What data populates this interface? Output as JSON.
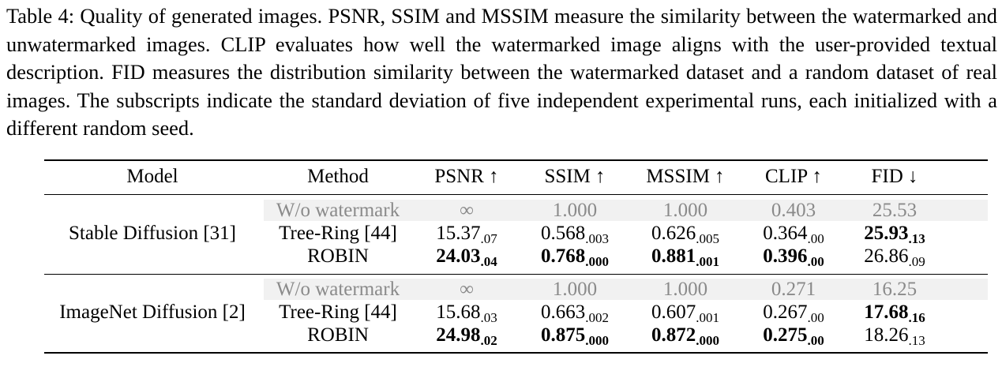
{
  "caption": "Table 4: Quality of generated images. PSNR, SSIM and MSSIM measure the similarity between the watermarked and unwatermarked images. CLIP evaluates how well the watermarked image aligns with the user-provided textual description. FID measures the distribution similarity between the watermarked dataset and a random dataset of real images. The subscripts indicate the standard deviation of five independent experimental runs, each initialized with a different random seed.",
  "table": {
    "headers": [
      "Model",
      "Method",
      "PSNR ↑",
      "SSIM ↑",
      "MSSIM ↑",
      "CLIP ↑",
      "FID ↓"
    ],
    "groups": [
      {
        "model": "Stable Diffusion [31]",
        "rows": [
          {
            "method": "W/o watermark",
            "baseline": true,
            "cells": [
              {
                "v": "∞",
                "s": ""
              },
              {
                "v": "1.000",
                "s": ""
              },
              {
                "v": "1.000",
                "s": ""
              },
              {
                "v": "0.403",
                "s": ""
              },
              {
                "v": "25.53",
                "s": ""
              }
            ]
          },
          {
            "method": "Tree-Ring [44]",
            "cells": [
              {
                "v": "15.37",
                "s": ".07"
              },
              {
                "v": "0.568",
                "s": ".003"
              },
              {
                "v": "0.626",
                "s": ".005"
              },
              {
                "v": "0.364",
                "s": ".00"
              },
              {
                "v": "25.93",
                "s": ".13",
                "bold": true
              }
            ]
          },
          {
            "method": "ROBIN",
            "cells": [
              {
                "v": "24.03",
                "s": ".04",
                "bold": true
              },
              {
                "v": "0.768",
                "s": ".000",
                "bold": true
              },
              {
                "v": "0.881",
                "s": ".001",
                "bold": true
              },
              {
                "v": "0.396",
                "s": ".00",
                "bold": true
              },
              {
                "v": "26.86",
                "s": ".09"
              }
            ]
          }
        ]
      },
      {
        "model": "ImageNet Diffusion [2]",
        "rows": [
          {
            "method": "W/o watermark",
            "baseline": true,
            "cells": [
              {
                "v": "∞",
                "s": ""
              },
              {
                "v": "1.000",
                "s": ""
              },
              {
                "v": "1.000",
                "s": ""
              },
              {
                "v": "0.271",
                "s": ""
              },
              {
                "v": "16.25",
                "s": ""
              }
            ]
          },
          {
            "method": "Tree-Ring [44]",
            "cells": [
              {
                "v": "15.68",
                "s": ".03"
              },
              {
                "v": "0.663",
                "s": ".002"
              },
              {
                "v": "0.607",
                "s": ".001"
              },
              {
                "v": "0.267",
                "s": ".00"
              },
              {
                "v": "17.68",
                "s": ".16",
                "bold": true
              }
            ]
          },
          {
            "method": "ROBIN",
            "cells": [
              {
                "v": "24.98",
                "s": ".02",
                "bold": true
              },
              {
                "v": "0.875",
                "s": ".000",
                "bold": true
              },
              {
                "v": "0.872",
                "s": ".000",
                "bold": true
              },
              {
                "v": "0.275",
                "s": ".00",
                "bold": true
              },
              {
                "v": "18.26",
                "s": ".13"
              }
            ]
          }
        ]
      }
    ]
  }
}
